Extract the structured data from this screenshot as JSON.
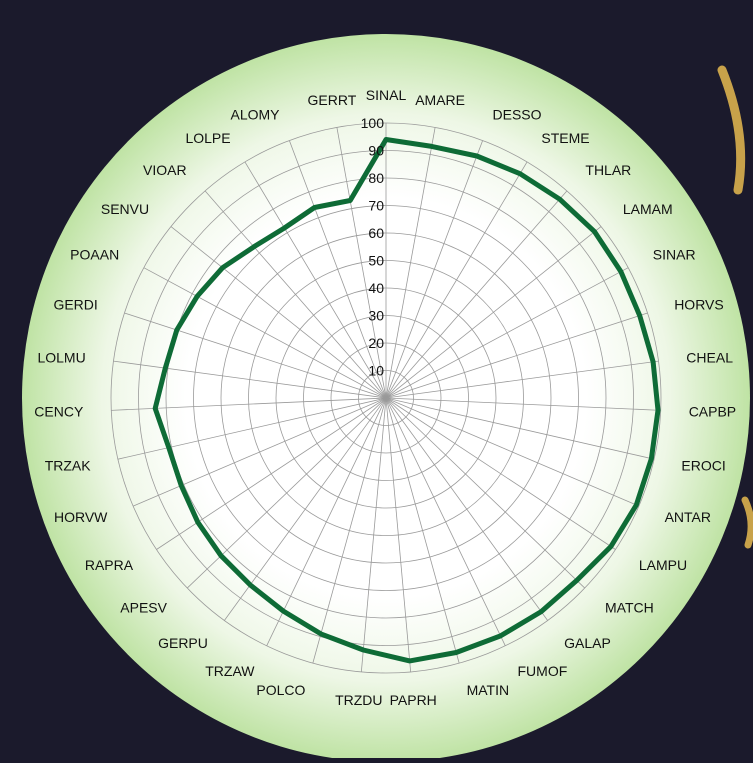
{
  "chart_data": {
    "type": "radar",
    "categories": [
      "SINAL",
      "AMARE",
      "DESSO",
      "STEME",
      "THLAR",
      "LAMAM",
      "SINAR",
      "HORVS",
      "CHEAL",
      "CAPBP",
      "EROCI",
      "ANTAR",
      "LAMPU",
      "MATCH",
      "GALAP",
      "FUMOF",
      "MATIN",
      "PAPRH",
      "TRZDU",
      "POLCO",
      "TRZAW",
      "GERPU",
      "APESV",
      "RAPRA",
      "HORVW",
      "TRZAK",
      "CENCY",
      "LOLMU",
      "GERDI",
      "POAAN",
      "SENVU",
      "VIOAR",
      "LOLPE",
      "ALOMY",
      "GERRT"
    ],
    "series": [
      {
        "values": [
          94,
          93,
          94,
          95,
          96,
          97,
          97,
          97,
          98,
          99,
          99,
          99,
          98,
          96,
          96,
          96,
          96,
          96,
          92,
          89,
          86,
          84,
          83,
          82,
          81,
          81,
          84,
          81,
          80,
          78,
          76,
          73,
          72,
          74,
          73
        ],
        "color": "#0e6b36"
      }
    ],
    "rlim": [
      0,
      100
    ],
    "ticks": [
      10,
      20,
      30,
      40,
      50,
      60,
      70,
      80,
      90,
      100
    ],
    "grid": true,
    "title": "",
    "legend": "none"
  },
  "colors": {
    "background": "#1b1a2c",
    "disc_outer": "#bfe3a4",
    "disc_inner": "#ffffff",
    "grid": "#9a9a9a",
    "series": "#0e6b36"
  }
}
